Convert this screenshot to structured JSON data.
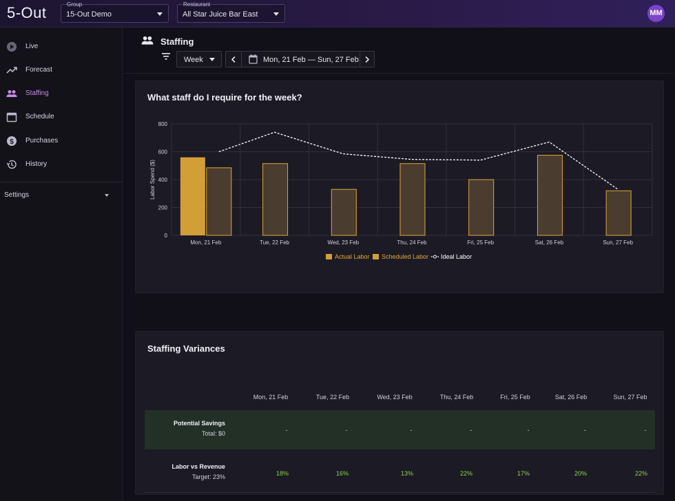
{
  "app": {
    "logo": "5-Out",
    "avatar_initials": "MM"
  },
  "header": {
    "group": {
      "label": "Group",
      "value": "15-Out Demo"
    },
    "restaurant": {
      "label": "Restaurant",
      "value": "All Star Juice Bar East"
    }
  },
  "sidebar": {
    "items": [
      {
        "label": "Live",
        "icon": "play-circle-icon"
      },
      {
        "label": "Forecast",
        "icon": "trending-up-icon"
      },
      {
        "label": "Staffing",
        "icon": "people-icon",
        "active": true
      },
      {
        "label": "Schedule",
        "icon": "calendar-icon"
      },
      {
        "label": "Purchases",
        "icon": "dollar-circle-icon"
      },
      {
        "label": "History",
        "icon": "history-icon"
      }
    ],
    "settings_label": "Settings"
  },
  "page": {
    "title": "Staffing",
    "period": "Week",
    "date_start": "Mon, 21 Feb",
    "date_sep": "—",
    "date_end": "Sun, 27 Feb"
  },
  "chart_card": {
    "title": "What staff do I require for the week?"
  },
  "chart_data": {
    "type": "bar",
    "title": "What staff do I require for the week?",
    "ylabel": "Labor Spend ($)",
    "xlabel": "",
    "ylim": [
      0,
      800
    ],
    "yticks": [
      0,
      200,
      400,
      600,
      800
    ],
    "categories": [
      "Mon, 21 Feb",
      "Tue, 22 Feb",
      "Wed, 23 Feb",
      "Thu, 24 Feb",
      "Fri, 25 Feb",
      "Sat, 26 Feb",
      "Sun, 27 Feb"
    ],
    "series": [
      {
        "name": "Actual Labor",
        "type": "bar",
        "color": "#d29f36",
        "values": [
          560,
          null,
          null,
          null,
          null,
          null,
          null
        ]
      },
      {
        "name": "Scheduled Labor",
        "type": "bar",
        "color": "#4a3c2e",
        "stroke": "#e0a93a",
        "values": [
          485,
          515,
          330,
          515,
          400,
          575,
          320
        ]
      },
      {
        "name": "Ideal Labor",
        "type": "line",
        "color": "#ffffff",
        "dashed": true,
        "values": [
          600,
          740,
          585,
          545,
          540,
          670,
          330
        ]
      }
    ],
    "legend": "bottom",
    "grid": true
  },
  "variances": {
    "title": "Staffing Variances",
    "days": [
      "Mon, 21 Feb",
      "Tue, 22 Feb",
      "Wed, 23 Feb",
      "Thu, 24 Feb",
      "Fri, 25 Feb",
      "Sat, 26 Feb",
      "Sun, 27 Feb"
    ],
    "savings": {
      "label": "Potential Savings",
      "sub": "Total: $0",
      "values": [
        "-",
        "-",
        "-",
        "-",
        "-",
        "-",
        "-"
      ]
    },
    "labor_vs_revenue": {
      "label": "Labor vs Revenue",
      "sub": "Target: 23%",
      "values": [
        "18%",
        "16%",
        "13%",
        "22%",
        "17%",
        "20%",
        "22%"
      ]
    }
  }
}
